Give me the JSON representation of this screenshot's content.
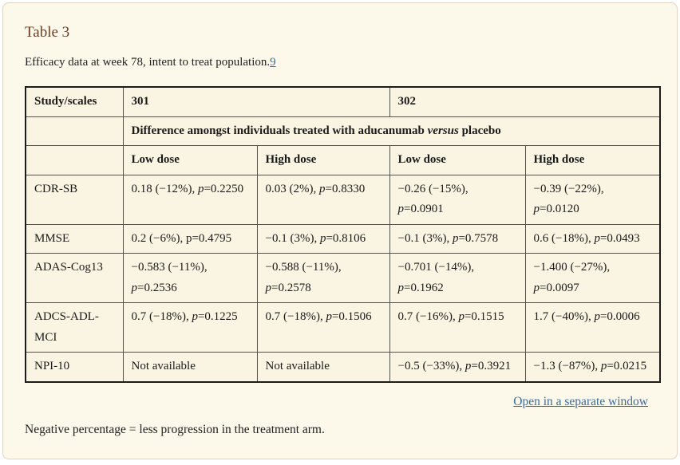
{
  "page": {
    "title": "Table 3",
    "caption": "Efficacy data at week 78, intent to treat population.",
    "caption_ref": "9",
    "open_link_label": "Open in a separate window",
    "footnote": "Negative percentage = less progression in the treatment arm."
  },
  "colors": {
    "card_background": "#fcf8ea",
    "card_border": "#e7d0bd",
    "title_brown": "#6e3c23",
    "link_blue": "#3c6d9c",
    "table_border_outer": "#1c1c1c",
    "table_border_inner": "#53534b"
  },
  "table": {
    "corner_header": "Study/scales",
    "study_headers": [
      "301",
      "302"
    ],
    "span_header": "Difference amongst individuals treated with aducanumab *versus* placebo",
    "dose_headers": [
      "Low dose",
      "High dose",
      "Low dose",
      "High dose"
    ],
    "rows": [
      {
        "label": "CDR-SB",
        "cells": [
          "0.18 (−12%), *p*=0.2250",
          "0.03 (2%), *p*=0.8330",
          "−0.26 (−15%),\n*p*=0.0901",
          "−0.39 (−22%),\n*p*=0.0120"
        ]
      },
      {
        "label": "MMSE",
        "cells": [
          "0.2 (−6%), p=0.4795",
          "−0.1 (3%), *p*=0.8106",
          "−0.1 (3%), *p*=0.7578",
          "0.6 (−18%), *p*=0.0493"
        ]
      },
      {
        "label": "ADAS-Cog13",
        "cells": [
          "−0.583 (−11%),\n*p*=0.2536",
          "−0.588 (−11%),\n*p*=0.2578",
          "−0.701 (−14%),\n*p*=0.1962",
          "−1.400 (−27%),\n*p*=0.0097"
        ]
      },
      {
        "label": "ADCS-ADL-MCI",
        "cells": [
          "0.7 (−18%), *p*=0.1225",
          "0.7 (−18%), *p*=0.1506",
          "0.7 (−16%), *p*=0.1515",
          "1.7 (−40%), *p*=0.0006"
        ]
      },
      {
        "label": "NPI-10",
        "cells": [
          "Not available",
          "Not available",
          "−0.5 (−33%), *p*=0.3921",
          "−1.3 (−87%), *p*=0.0215"
        ]
      }
    ]
  }
}
